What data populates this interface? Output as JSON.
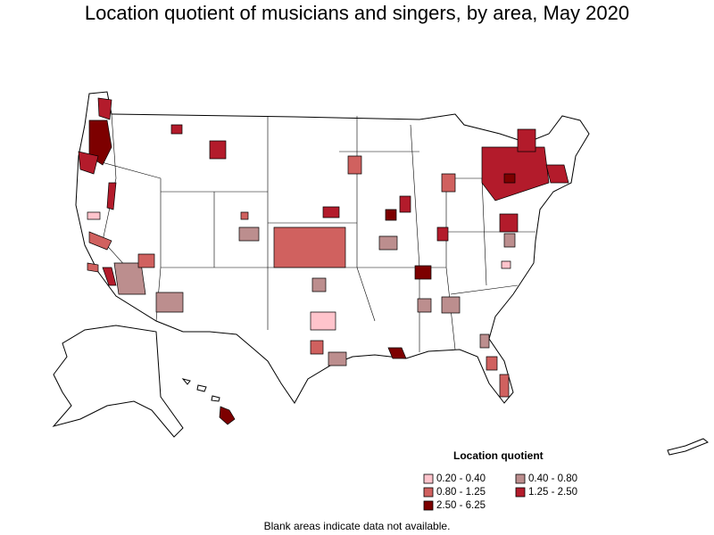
{
  "title": "Location quotient of musicians and singers, by area, May 2020",
  "legend": {
    "title": "Location quotient",
    "items": [
      {
        "label": "0.20 - 0.40",
        "color": "#ffc4cc"
      },
      {
        "label": "0.40 - 0.80",
        "color": "#bc8e8e"
      },
      {
        "label": "0.80 - 1.25",
        "color": "#d0615f"
      },
      {
        "label": "1.25 - 2.50",
        "color": "#b31b2b"
      },
      {
        "label": "2.50 - 6.25",
        "color": "#7d0000"
      }
    ]
  },
  "note": "Blank areas indicate data not available."
}
